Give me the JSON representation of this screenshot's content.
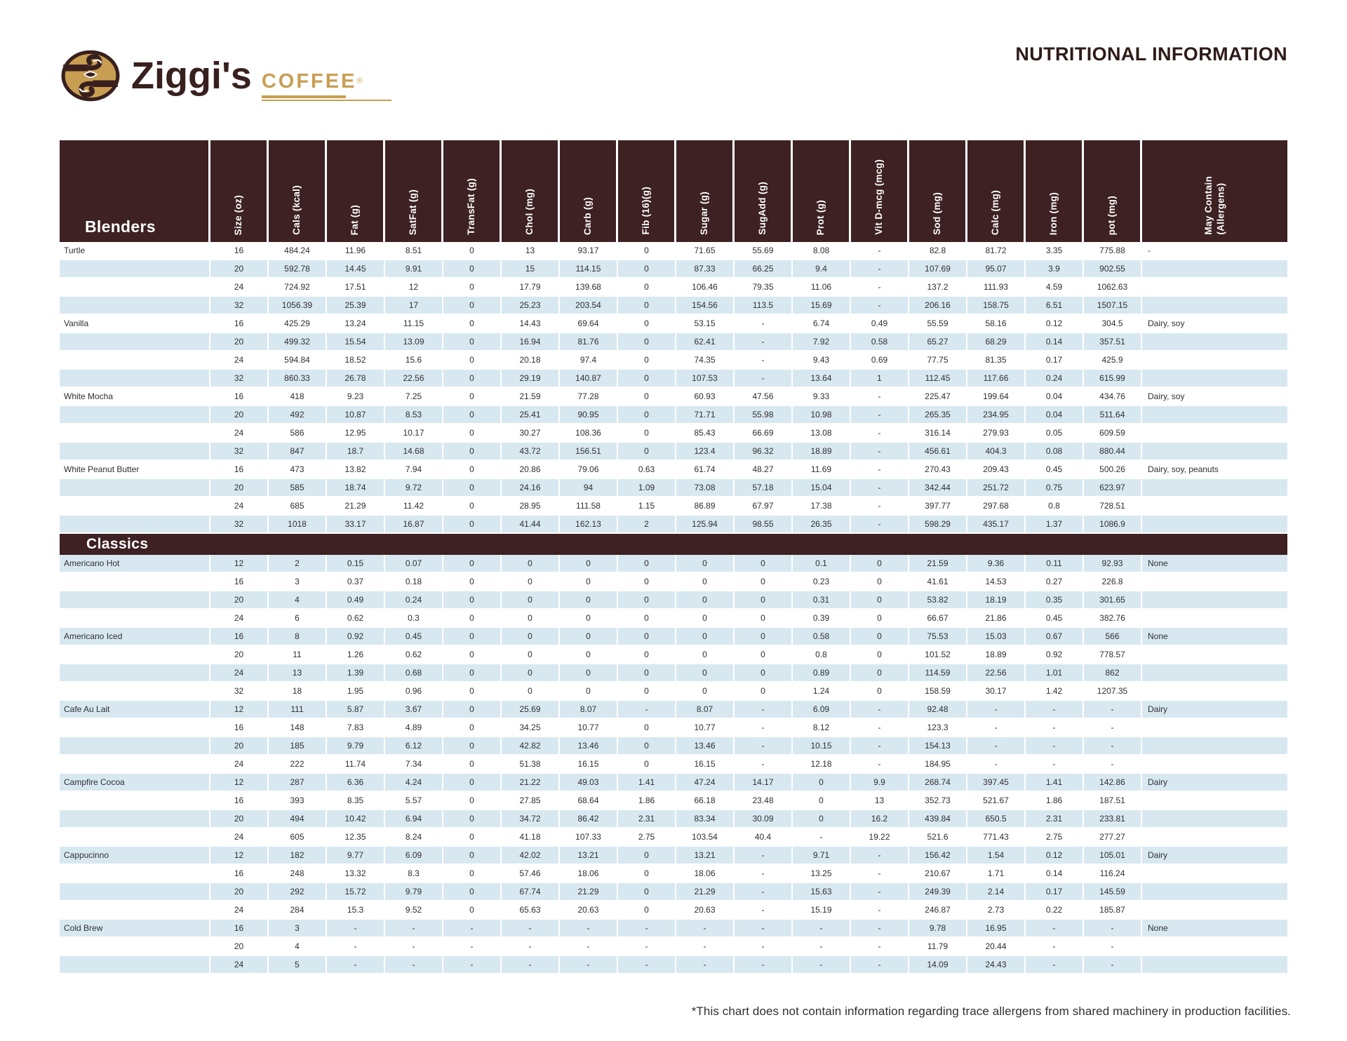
{
  "page": {
    "title": "NUTRITIONAL INFORMATION",
    "footnote": "*This chart does not contain information regarding trace allergens from shared machinery in production facilities."
  },
  "logo": {
    "brand": "Ziggi's",
    "word": "COFFEE",
    "registered": "®"
  },
  "colors": {
    "header_bg": "#3D2123",
    "stripe_blue": "#D8E8F0",
    "tan": "#C89E52",
    "dark_brown": "#38201E",
    "text": "#2F2F2F"
  },
  "table": {
    "columns": [
      "Size (oz)",
      "Cals (kcal)",
      "Fat (g)",
      "SatFat (g)",
      "TransFat (g)",
      "Chol (mg)",
      "Carb (g)",
      "Fib (16)(g)",
      "Sugar (g)",
      "SugAdd (g)",
      "Prot (g)",
      "Vit D-mcg (mcg)",
      "Sod (mg)",
      "Calc (mg)",
      "Iron (mg)",
      "pot (mg)",
      "May Contain\n(Allergens)"
    ],
    "sections": [
      {
        "label": "Blenders",
        "band": false,
        "stripe_start": "white",
        "items": [
          {
            "name": "Turtle",
            "allergens": "-",
            "rows": [
              [
                "16",
                "484.24",
                "11.96",
                "8.51",
                "0",
                "13",
                "93.17",
                "0",
                "71.65",
                "55.69",
                "8.08",
                "-",
                "82.8",
                "81.72",
                "3.35",
                "775.88"
              ],
              [
                "20",
                "592.78",
                "14.45",
                "9.91",
                "0",
                "15",
                "114.15",
                "0",
                "87.33",
                "66.25",
                "9.4",
                "-",
                "107.69",
                "95.07",
                "3.9",
                "902.55"
              ],
              [
                "24",
                "724.92",
                "17.51",
                "12",
                "0",
                "17.79",
                "139.68",
                "0",
                "106.46",
                "79.35",
                "11.06",
                "-",
                "137.2",
                "111.93",
                "4.59",
                "1062.63"
              ],
              [
                "32",
                "1056.39",
                "25.39",
                "17",
                "0",
                "25.23",
                "203.54",
                "0",
                "154.56",
                "113.5",
                "15.69",
                "-",
                "206.16",
                "158.75",
                "6.51",
                "1507.15"
              ]
            ]
          },
          {
            "name": "Vanilla",
            "allergens": "Dairy, soy",
            "rows": [
              [
                "16",
                "425.29",
                "13.24",
                "11.15",
                "0",
                "14.43",
                "69.64",
                "0",
                "53.15",
                "-",
                "6.74",
                "0.49",
                "55.59",
                "58.16",
                "0.12",
                "304.5"
              ],
              [
                "20",
                "499.32",
                "15.54",
                "13.09",
                "0",
                "16.94",
                "81.76",
                "0",
                "62.41",
                "-",
                "7.92",
                "0.58",
                "65.27",
                "68.29",
                "0.14",
                "357.51"
              ],
              [
                "24",
                "594.84",
                "18.52",
                "15.6",
                "0",
                "20.18",
                "97.4",
                "0",
                "74.35",
                "-",
                "9.43",
                "0.69",
                "77.75",
                "81.35",
                "0.17",
                "425.9"
              ],
              [
                "32",
                "860.33",
                "26.78",
                "22.56",
                "0",
                "29.19",
                "140.87",
                "0",
                "107.53",
                "-",
                "13.64",
                "1",
                "112.45",
                "117.66",
                "0.24",
                "615.99"
              ]
            ]
          },
          {
            "name": "White Mocha",
            "allergens": "Dairy, soy",
            "rows": [
              [
                "16",
                "418",
                "9.23",
                "7.25",
                "0",
                "21.59",
                "77.28",
                "0",
                "60.93",
                "47.56",
                "9.33",
                "-",
                "225.47",
                "199.64",
                "0.04",
                "434.76"
              ],
              [
                "20",
                "492",
                "10.87",
                "8.53",
                "0",
                "25.41",
                "90.95",
                "0",
                "71.71",
                "55.98",
                "10.98",
                "-",
                "265.35",
                "234.95",
                "0.04",
                "511.64"
              ],
              [
                "24",
                "586",
                "12.95",
                "10.17",
                "0",
                "30.27",
                "108.36",
                "0",
                "85.43",
                "66.69",
                "13.08",
                "-",
                "316.14",
                "279.93",
                "0.05",
                "609.59"
              ],
              [
                "32",
                "847",
                "18.7",
                "14.68",
                "0",
                "43.72",
                "156.51",
                "0",
                "123.4",
                "96.32",
                "18.89",
                "-",
                "456.61",
                "404.3",
                "0.08",
                "880.44"
              ]
            ]
          },
          {
            "name": "White Peanut Butter",
            "allergens": "Dairy, soy, peanuts",
            "rows": [
              [
                "16",
                "473",
                "13.82",
                "7.94",
                "0",
                "20.86",
                "79.06",
                "0.63",
                "61.74",
                "48.27",
                "11.69",
                "-",
                "270.43",
                "209.43",
                "0.45",
                "500.26"
              ],
              [
                "20",
                "585",
                "18.74",
                "9.72",
                "0",
                "24.16",
                "94",
                "1.09",
                "73.08",
                "57.18",
                "15.04",
                "-",
                "342.44",
                "251.72",
                "0.75",
                "623.97"
              ],
              [
                "24",
                "685",
                "21.29",
                "11.42",
                "0",
                "28.95",
                "111.58",
                "1.15",
                "86.89",
                "67.97",
                "17.38",
                "-",
                "397.77",
                "297.68",
                "0.8",
                "728.51"
              ],
              [
                "32",
                "1018",
                "33.17",
                "16.87",
                "0",
                "41.44",
                "162.13",
                "2",
                "125.94",
                "98.55",
                "26.35",
                "-",
                "598.29",
                "435.17",
                "1.37",
                "1086.9"
              ]
            ]
          }
        ]
      },
      {
        "label": "Classics",
        "band": true,
        "stripe_start": "blue",
        "items": [
          {
            "name": "Americano Hot",
            "allergens": "None",
            "rows": [
              [
                "12",
                "2",
                "0.15",
                "0.07",
                "0",
                "0",
                "0",
                "0",
                "0",
                "0",
                "0.1",
                "0",
                "21.59",
                "9.36",
                "0.11",
                "92.93"
              ],
              [
                "16",
                "3",
                "0.37",
                "0.18",
                "0",
                "0",
                "0",
                "0",
                "0",
                "0",
                "0.23",
                "0",
                "41.61",
                "14.53",
                "0.27",
                "226.8"
              ],
              [
                "20",
                "4",
                "0.49",
                "0.24",
                "0",
                "0",
                "0",
                "0",
                "0",
                "0",
                "0.31",
                "0",
                "53.82",
                "18.19",
                "0.35",
                "301.65"
              ],
              [
                "24",
                "6",
                "0.62",
                "0.3",
                "0",
                "0",
                "0",
                "0",
                "0",
                "0",
                "0.39",
                "0",
                "66.67",
                "21.86",
                "0.45",
                "382.76"
              ]
            ]
          },
          {
            "name": "Americano Iced",
            "allergens": "None",
            "rows": [
              [
                "16",
                "8",
                "0.92",
                "0.45",
                "0",
                "0",
                "0",
                "0",
                "0",
                "0",
                "0.58",
                "0",
                "75.53",
                "15.03",
                "0.67",
                "566"
              ],
              [
                "20",
                "11",
                "1.26",
                "0.62",
                "0",
                "0",
                "0",
                "0",
                "0",
                "0",
                "0.8",
                "0",
                "101.52",
                "18.89",
                "0.92",
                "778.57"
              ],
              [
                "24",
                "13",
                "1.39",
                "0.68",
                "0",
                "0",
                "0",
                "0",
                "0",
                "0",
                "0.89",
                "0",
                "114.59",
                "22.56",
                "1.01",
                "862"
              ],
              [
                "32",
                "18",
                "1.95",
                "0.96",
                "0",
                "0",
                "0",
                "0",
                "0",
                "0",
                "1.24",
                "0",
                "158.59",
                "30.17",
                "1.42",
                "1207.35"
              ]
            ]
          },
          {
            "name": "Cafe Au Lait",
            "allergens": "Dairy",
            "rows": [
              [
                "12",
                "111",
                "5.87",
                "3.67",
                "0",
                "25.69",
                "8.07",
                "-",
                "8.07",
                "-",
                "6.09",
                "-",
                "92.48",
                "-",
                "-",
                "-"
              ],
              [
                "16",
                "148",
                "7.83",
                "4.89",
                "0",
                "34.25",
                "10.77",
                "0",
                "10.77",
                "-",
                "8.12",
                "-",
                "123.3",
                "-",
                "-",
                "-"
              ],
              [
                "20",
                "185",
                "9.79",
                "6.12",
                "0",
                "42.82",
                "13.46",
                "0",
                "13.46",
                "-",
                "10.15",
                "-",
                "154.13",
                "-",
                "-",
                "-"
              ],
              [
                "24",
                "222",
                "11.74",
                "7.34",
                "0",
                "51.38",
                "16.15",
                "0",
                "16.15",
                "-",
                "12.18",
                "-",
                "184.95",
                "-",
                "-",
                "-"
              ]
            ]
          },
          {
            "name": "Campfire Cocoa",
            "allergens": "Dairy",
            "rows": [
              [
                "12",
                "287",
                "6.36",
                "4.24",
                "0",
                "21.22",
                "49.03",
                "1.41",
                "47.24",
                "14.17",
                "0",
                "9.9",
                "268.74",
                "397.45",
                "1.41",
                "142.86"
              ],
              [
                "16",
                "393",
                "8.35",
                "5.57",
                "0",
                "27.85",
                "68.64",
                "1.86",
                "66.18",
                "23.48",
                "0",
                "13",
                "352.73",
                "521.67",
                "1.86",
                "187.51"
              ],
              [
                "20",
                "494",
                "10.42",
                "6.94",
                "0",
                "34.72",
                "86.42",
                "2.31",
                "83.34",
                "30.09",
                "0",
                "16.2",
                "439.84",
                "650.5",
                "2.31",
                "233.81"
              ],
              [
                "24",
                "605",
                "12.35",
                "8.24",
                "0",
                "41.18",
                "107.33",
                "2.75",
                "103.54",
                "40.4",
                "-",
                "19.22",
                "521.6",
                "771.43",
                "2.75",
                "277.27"
              ]
            ]
          },
          {
            "name": "Cappucinno",
            "allergens": "Dairy",
            "rows": [
              [
                "12",
                "182",
                "9.77",
                "6.09",
                "0",
                "42.02",
                "13.21",
                "0",
                "13.21",
                "-",
                "9.71",
                "-",
                "156.42",
                "1.54",
                "0.12",
                "105.01"
              ],
              [
                "16",
                "248",
                "13.32",
                "8.3",
                "0",
                "57.46",
                "18.06",
                "0",
                "18.06",
                "-",
                "13.25",
                "-",
                "210.67",
                "1.71",
                "0.14",
                "116.24"
              ],
              [
                "20",
                "292",
                "15.72",
                "9.79",
                "0",
                "67.74",
                "21.29",
                "0",
                "21.29",
                "-",
                "15.63",
                "-",
                "249.39",
                "2.14",
                "0.17",
                "145.59"
              ],
              [
                "24",
                "284",
                "15.3",
                "9.52",
                "0",
                "65.63",
                "20.63",
                "0",
                "20.63",
                "-",
                "15.19",
                "-",
                "246.87",
                "2.73",
                "0.22",
                "185.87"
              ]
            ]
          },
          {
            "name": "Cold Brew",
            "allergens": "None",
            "rows": [
              [
                "16",
                "3",
                "-",
                "-",
                "-",
                "-",
                "-",
                "-",
                "-",
                "-",
                "-",
                "-",
                "9.78",
                "16.95",
                "-",
                "-"
              ],
              [
                "20",
                "4",
                "-",
                "-",
                "-",
                "-",
                "-",
                "-",
                "-",
                "-",
                "-",
                "-",
                "11.79",
                "20.44",
                "-",
                "-"
              ],
              [
                "24",
                "5",
                "-",
                "-",
                "-",
                "-",
                "-",
                "-",
                "-",
                "-",
                "-",
                "-",
                "14.09",
                "24.43",
                "-",
                "-"
              ]
            ]
          }
        ]
      }
    ]
  }
}
